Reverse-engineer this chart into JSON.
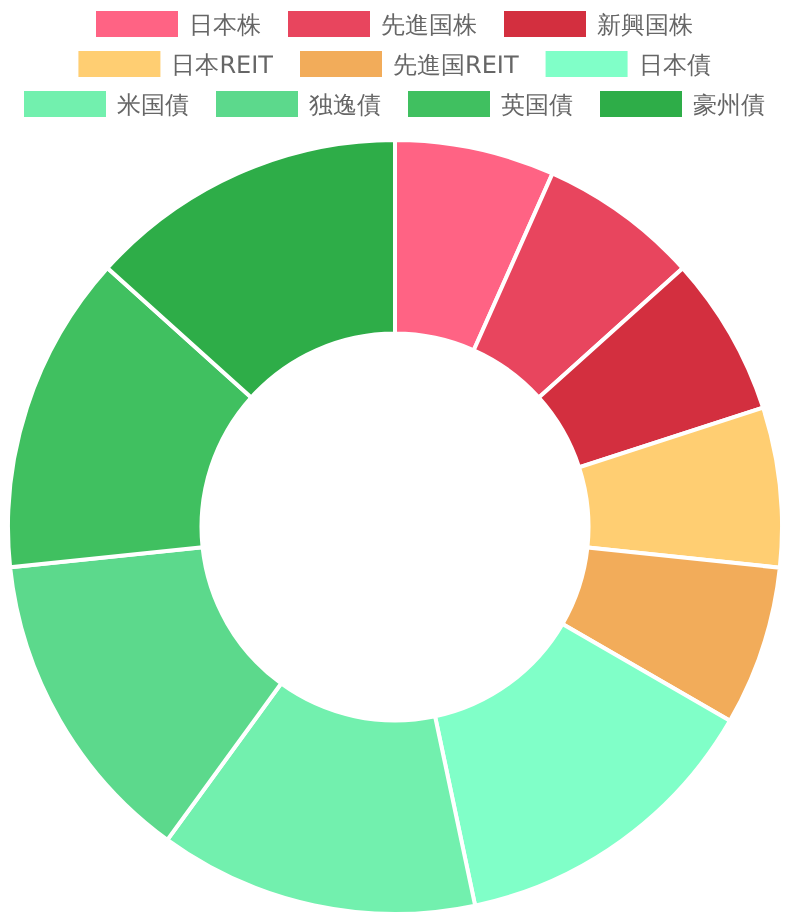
{
  "chart_data": {
    "type": "donut",
    "legend": "top",
    "categories": [
      "日本株",
      "先進国株",
      "新興国株",
      "日本REIT",
      "先進国REIT",
      "日本債",
      "米国債",
      "独逸債",
      "英国債",
      "豪州債"
    ],
    "values": [
      6.67,
      6.67,
      6.67,
      6.67,
      6.67,
      13.33,
      13.33,
      13.33,
      13.33,
      13.33
    ],
    "colors": [
      "#ff6384",
      "#e8455e",
      "#d32f3f",
      "#ffce72",
      "#f2ac5a",
      "#80ffc8",
      "#72f0ae",
      "#5cd98c",
      "#40c060",
      "#2ead48"
    ]
  }
}
